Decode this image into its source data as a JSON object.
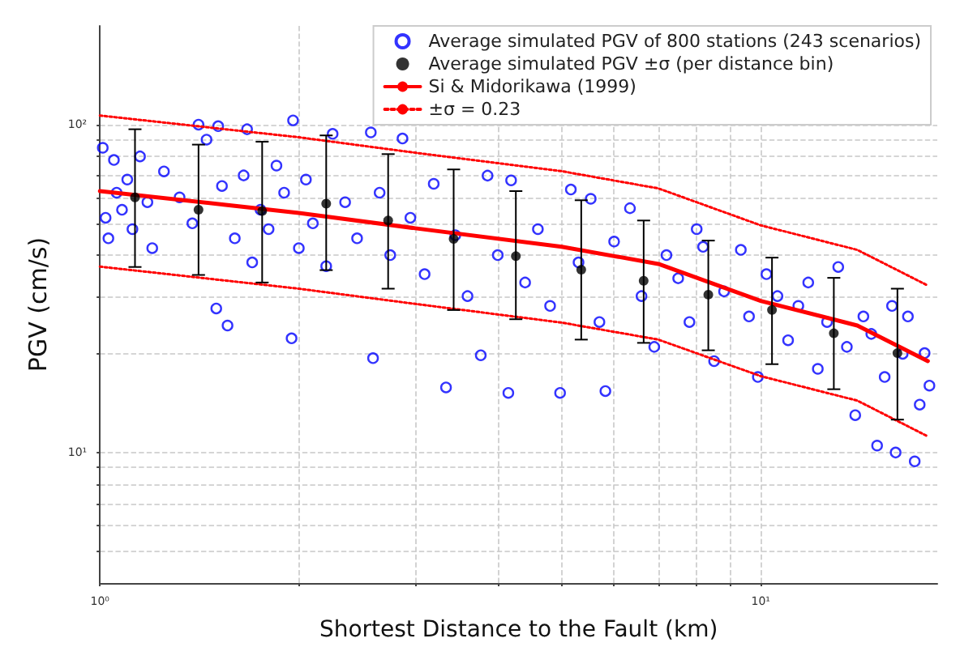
{
  "chart_data": {
    "type": "scatter",
    "xlabel": "Shortest Distance to the Fault (km)",
    "ylabel": "PGV (cm/s)",
    "log": "xy",
    "grid": true,
    "legend": "top right",
    "xlim": [
      1,
      18.5
    ],
    "ylim": [
      4,
      200
    ],
    "xticks": [
      {
        "value": 1,
        "label": "10⁰"
      },
      {
        "value": 2,
        "label": null
      },
      {
        "value": 3,
        "label": null
      },
      {
        "value": 4,
        "label": null
      },
      {
        "value": 5,
        "label": null
      },
      {
        "value": 6,
        "label": null
      },
      {
        "value": 7,
        "label": null
      },
      {
        "value": 8,
        "label": null
      },
      {
        "value": 9,
        "label": null
      },
      {
        "value": 10,
        "label": "10¹"
      }
    ],
    "yticks": [
      {
        "value": 5,
        "label": null
      },
      {
        "value": 6,
        "label": null
      },
      {
        "value": 7,
        "label": null
      },
      {
        "value": 8,
        "label": null
      },
      {
        "value": 9,
        "label": null
      },
      {
        "value": 10,
        "label": "10¹"
      },
      {
        "value": 20,
        "label": null
      },
      {
        "value": 30,
        "label": null
      },
      {
        "value": 40,
        "label": null
      },
      {
        "value": 50,
        "label": null
      },
      {
        "value": 60,
        "label": null
      },
      {
        "value": 70,
        "label": null
      },
      {
        "value": 80,
        "label": null
      },
      {
        "value": 90,
        "label": null
      },
      {
        "value": 100,
        "label": "10²"
      }
    ],
    "series": [
      {
        "name": "Average simulated PGV of 800 stations (243 scenarios)",
        "color": "#0000ff",
        "marker": "circle",
        "x": [
          1.01,
          1.02,
          1.03,
          1.05,
          1.06,
          1.08,
          1.1,
          1.12,
          1.15,
          1.18,
          1.2,
          1.25,
          1.32,
          1.38,
          1.41,
          1.45,
          1.5,
          1.51,
          1.53,
          1.56,
          1.6,
          1.65,
          1.67,
          1.7,
          1.75,
          1.8,
          1.85,
          1.9,
          1.95,
          1.96,
          2.0,
          2.05,
          2.1,
          2.2,
          2.25,
          2.35,
          2.45,
          2.57,
          2.59,
          2.65,
          2.75,
          2.87,
          2.95,
          3.1,
          3.2,
          3.34,
          3.45,
          3.6,
          3.77,
          3.86,
          4.0,
          4.15,
          4.19,
          4.4,
          4.6,
          4.8,
          4.97,
          5.16,
          5.3,
          5.53,
          5.7,
          5.82,
          6.0,
          6.34,
          6.6,
          6.9,
          7.2,
          7.5,
          7.8,
          8.0,
          8.18,
          8.5,
          8.8,
          9.33,
          9.6,
          9.9,
          10.2,
          10.6,
          11,
          11.4,
          11.8,
          12.2,
          12.6,
          13.1,
          13.5,
          13.9,
          14.3,
          14.7,
          15.0,
          15.4,
          15.8,
          16.0,
          16.4,
          16.7,
          17.1,
          17.4,
          17.7,
          18.0
        ],
        "values": [
          85,
          52,
          45,
          78,
          62,
          55,
          68,
          48,
          80,
          58,
          42,
          72,
          60,
          50,
          100,
          90,
          27.5,
          98.9,
          65,
          24.4,
          45,
          70,
          96.8,
          38,
          55,
          48,
          75,
          62,
          22.3,
          103,
          42,
          68,
          50,
          37,
          93.7,
          58,
          45,
          94.7,
          19.4,
          62,
          40,
          90.7,
          52,
          35,
          66,
          15.8,
          46,
          30,
          19.8,
          69.9,
          40,
          15.2,
          67.6,
          33,
          48,
          28,
          15.2,
          63.4,
          38,
          59.4,
          25,
          15.4,
          44,
          55.6,
          30,
          21,
          40,
          34,
          25,
          48,
          42.4,
          19,
          31,
          41.5,
          26,
          17,
          35,
          30,
          22,
          28,
          33,
          18,
          25,
          36.8,
          21,
          13.0,
          26,
          23,
          10.5,
          17,
          28,
          10.0,
          20,
          26.0,
          9.4,
          14,
          20.1,
          16
        ]
      },
      {
        "name": "Average simulated PGV ±σ (per distance bin)",
        "color": "#000000",
        "marker": "circle",
        "x": [
          1.13,
          1.41,
          1.76,
          2.2,
          2.73,
          3.43,
          4.26,
          5.35,
          6.65,
          8.33,
          10.4,
          12.9,
          16.1
        ],
        "values": [
          60,
          55,
          54.5,
          57.4,
          51,
          44.8,
          39.7,
          36.1,
          33.4,
          30.3,
          27.2,
          23.1,
          20.1
        ],
        "errors": [
          [
            36.8,
            96.8
          ],
          [
            34.8,
            86.9
          ],
          [
            33,
            88.7
          ],
          [
            36,
            92.7
          ],
          [
            31.6,
            81.3
          ],
          [
            27.2,
            73
          ],
          [
            25.5,
            62.7
          ],
          [
            22.1,
            58.8
          ],
          [
            21.6,
            51
          ],
          [
            20.5,
            44.3
          ],
          [
            18.6,
            39.3
          ],
          [
            15.6,
            34.1
          ],
          [
            12.6,
            31.6
          ]
        ]
      },
      {
        "type": "line",
        "name": "Si & Midorikawa (1999)",
        "color": "#ff0000",
        "marker": "none",
        "line_style": "solid",
        "x": [
          1,
          2,
          3,
          5,
          7,
          10,
          14,
          17.9
        ],
        "values": [
          62.7,
          53.8,
          48.3,
          42.4,
          37.6,
          29,
          24.4,
          19
        ]
      },
      {
        "type": "line",
        "name": "±σ = 0.23",
        "color": "#ff0000",
        "marker": "none",
        "line_style": "dotted",
        "x": [
          1,
          2,
          3,
          5,
          7,
          10,
          14,
          17.9
        ],
        "values": [
          106.6,
          91.5,
          82.1,
          72.1,
          63.9,
          49.3,
          41.5,
          32.3
        ]
      },
      {
        "type": "line",
        "color": "#ff0000",
        "marker": "none",
        "line_style": "dotted",
        "x": [
          1,
          2,
          3,
          5,
          7,
          10,
          14,
          17.9
        ],
        "values": [
          36.9,
          31.6,
          28.4,
          24.9,
          22.1,
          17.1,
          14.4,
          11.2
        ]
      }
    ]
  }
}
